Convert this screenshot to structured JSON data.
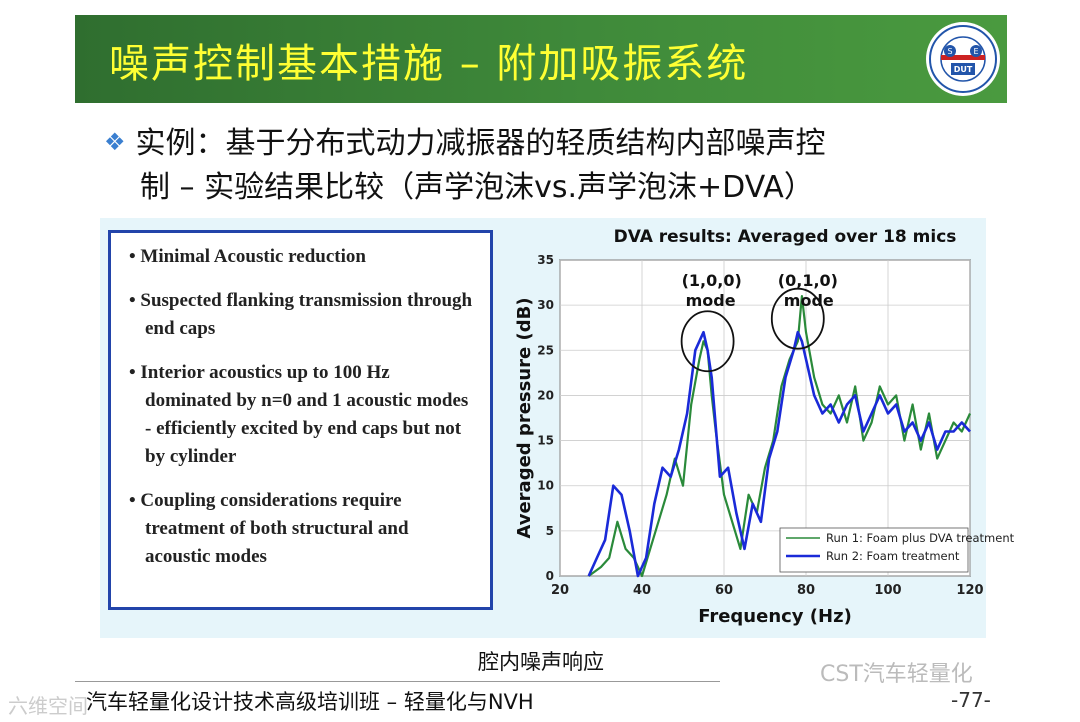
{
  "title": "噪声控制基本措施 – 附加吸振系统",
  "logo": {
    "text_top": "SCHOOL OF AUTOMOTIVE ENGINEERING",
    "text_bottom": "大连理工大学汽车工程学院",
    "badge": "DUT",
    "left_letter": "S",
    "right_letter": "E"
  },
  "bullet": {
    "icon": "diamond-bullet-icon",
    "line1": "实例：基于分布式动力减振器的轻质结构内部噪声控",
    "line2": "制 – 实验结果比较（声学泡沫vs.声学泡沫+DVA）"
  },
  "textbox_items": [
    "• Minimal Acoustic reduction",
    "• Suspected flanking  transmission through end caps",
    "• Interior acoustics up to 100 Hz dominated by n=0 and 1 acoustic modes - efficiently excited by end caps but not by cylinder",
    "• Coupling considerations require treatment of both structural and acoustic modes"
  ],
  "chart_data": {
    "type": "line",
    "title": "DVA results: Averaged over 18 mics",
    "xlabel": "Frequency (Hz)",
    "ylabel": "Averaged pressure (dB)",
    "xlim": [
      20,
      120
    ],
    "ylim": [
      0,
      35
    ],
    "xticks": [
      20,
      40,
      60,
      80,
      100,
      120
    ],
    "yticks": [
      0,
      5,
      10,
      15,
      20,
      25,
      30,
      35
    ],
    "grid": true,
    "legend": "bottom-right",
    "annotations": [
      {
        "text1": "(1,0,0)",
        "text2": "mode",
        "x": 56,
        "y": 26
      },
      {
        "text1": "(0,1,0)",
        "text2": "mode",
        "x": 78,
        "y": 28.5
      }
    ],
    "series": [
      {
        "name": "Run 1: Foam plus DVA treatment",
        "color": "#2a8a3a",
        "x": [
          27,
          30,
          32,
          34,
          36,
          38,
          40,
          42,
          44,
          46,
          48,
          50,
          52,
          54,
          55,
          56,
          57,
          58,
          60,
          62,
          64,
          66,
          68,
          70,
          72,
          74,
          76,
          78,
          79,
          80,
          82,
          84,
          86,
          88,
          90,
          92,
          94,
          96,
          98,
          100,
          102,
          104,
          106,
          108,
          110,
          112,
          114,
          116,
          118,
          120
        ],
        "y": [
          0,
          1,
          2,
          6,
          3,
          2,
          0,
          3,
          6,
          9,
          13,
          10,
          19,
          24,
          26,
          25,
          20,
          16,
          9,
          6,
          3,
          9,
          7,
          12,
          15,
          21,
          24,
          26,
          31,
          27,
          22,
          19,
          18,
          20,
          17,
          21,
          15,
          17,
          21,
          19,
          20,
          15,
          19,
          14,
          18,
          13,
          15,
          17,
          16,
          18
        ]
      },
      {
        "name": "Run 2: Foam treatment",
        "color": "#1a2ad8",
        "x": [
          27,
          29,
          31,
          33,
          35,
          37,
          39,
          41,
          43,
          45,
          47,
          49,
          51,
          53,
          55,
          56,
          57,
          59,
          61,
          63,
          65,
          67,
          69,
          71,
          73,
          75,
          77,
          78,
          79,
          80,
          82,
          84,
          86,
          88,
          90,
          92,
          94,
          96,
          98,
          100,
          102,
          104,
          106,
          108,
          110,
          112,
          114,
          116,
          118,
          120
        ],
        "y": [
          0,
          2,
          4,
          10,
          9,
          5,
          0,
          2,
          8,
          12,
          11,
          14,
          18,
          25,
          27,
          25,
          22,
          11,
          12,
          7,
          3,
          8,
          6,
          13,
          16,
          22,
          25,
          27,
          26,
          24,
          20,
          18,
          19,
          17,
          19,
          20,
          16,
          18,
          20,
          18,
          19,
          16,
          17,
          15,
          17,
          14,
          16,
          16,
          17,
          16
        ]
      }
    ]
  },
  "caption": "腔内噪声响应",
  "footer": "汽车轻量化设计技术高级培训班 – 轻量化与NVH",
  "page_number": "-77-",
  "watermark": "CST汽车轻量化",
  "watermark_left": "六维空间"
}
